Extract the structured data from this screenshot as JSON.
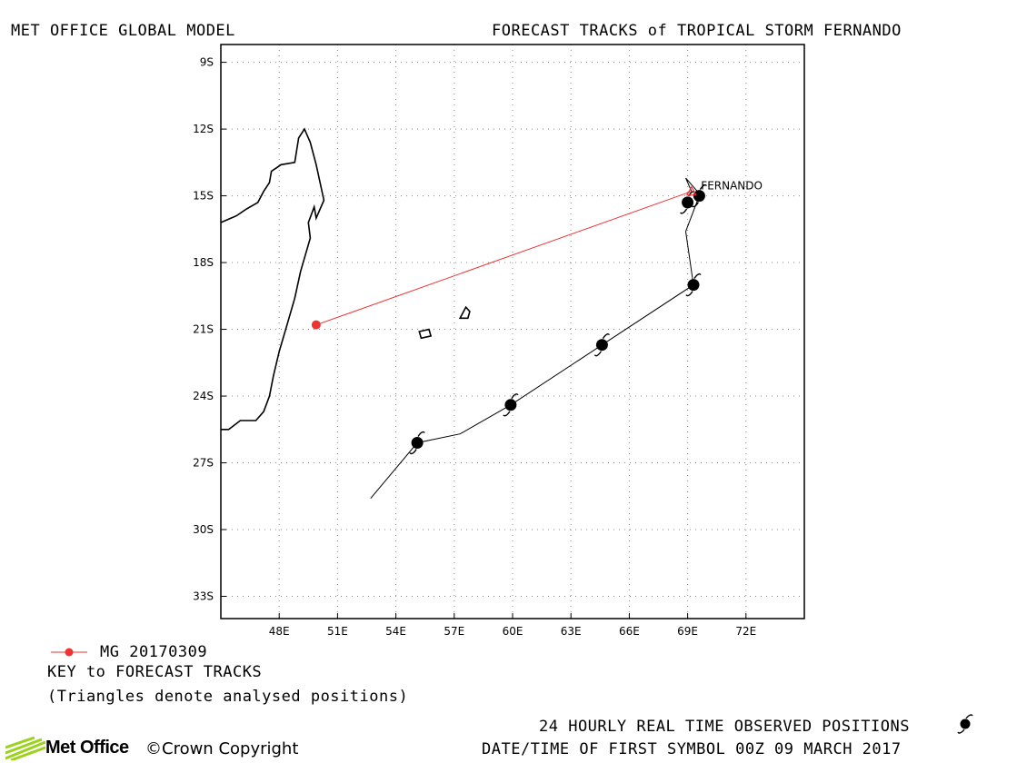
{
  "header": {
    "left_title": "MET OFFICE GLOBAL MODEL",
    "right_title": "FORECAST TRACKS of TROPICAL STORM FERNANDO"
  },
  "legend": {
    "series_label": "MG 20170309",
    "key_title": "KEY to FORECAST TRACKS",
    "key_note": "(Triangles denote analysed positions)"
  },
  "footer": {
    "observed_note": "24 HOURLY REAL TIME OBSERVED POSITIONS",
    "first_symbol_note": "DATE/TIME OF FIRST SYMBOL 00Z 09 MARCH 2017",
    "brand": "Met Office",
    "copyright": "©Crown Copyright"
  },
  "colors": {
    "forecast_track": "#ee3333",
    "observed_track": "#000000",
    "grid": "#888888",
    "coastline": "#000000"
  },
  "chart_data": {
    "type": "map",
    "xlim": [
      45,
      75
    ],
    "ylim": [
      -34,
      -8.2
    ],
    "x_ticks": [
      {
        "value": 48,
        "label": "48E"
      },
      {
        "value": 51,
        "label": "51E"
      },
      {
        "value": 54,
        "label": "54E"
      },
      {
        "value": 57,
        "label": "57E"
      },
      {
        "value": 60,
        "label": "60E"
      },
      {
        "value": 63,
        "label": "63E"
      },
      {
        "value": 66,
        "label": "66E"
      },
      {
        "value": 69,
        "label": "69E"
      },
      {
        "value": 72,
        "label": "72E"
      }
    ],
    "y_ticks": [
      {
        "value": -9,
        "label": "9S"
      },
      {
        "value": -12,
        "label": "12S"
      },
      {
        "value": -15,
        "label": "15S"
      },
      {
        "value": -18,
        "label": "18S"
      },
      {
        "value": -21,
        "label": "21S"
      },
      {
        "value": -24,
        "label": "24S"
      },
      {
        "value": -27,
        "label": "27S"
      },
      {
        "value": -30,
        "label": "30S"
      },
      {
        "value": -33,
        "label": "33S"
      }
    ],
    "grid": true,
    "storm_label": {
      "text": "FERNANDO",
      "lon": 69.5,
      "lat": -14.8
    },
    "forecast_tracks": [
      {
        "name": "MG 20170309",
        "points": [
          [
            69.2,
            -14.8
          ],
          [
            49.9,
            -20.8
          ]
        ],
        "start_marker": "triangle",
        "end_marker": "dot"
      }
    ],
    "observed_track": {
      "line": [
        [
          52.7,
          -28.6
        ],
        [
          55.1,
          -26.1
        ],
        [
          57.3,
          -25.7
        ],
        [
          59.9,
          -24.4
        ],
        [
          64.6,
          -21.7
        ],
        [
          69.3,
          -19.0
        ],
        [
          68.9,
          -16.6
        ],
        [
          69.6,
          -15.0
        ]
      ],
      "symbols": [
        [
          55.1,
          -26.1
        ],
        [
          59.9,
          -24.4
        ],
        [
          64.6,
          -21.7
        ],
        [
          69.3,
          -19.0
        ],
        [
          69.0,
          -15.3
        ],
        [
          69.6,
          -15.0
        ]
      ]
    },
    "analysed_hook": [
      [
        69.2,
        -14.8
      ],
      [
        68.9,
        -14.2
      ],
      [
        69.7,
        -15.0
      ]
    ],
    "coastline_madagascar": [
      [
        45.0,
        -16.2
      ],
      [
        45.8,
        -15.9
      ],
      [
        46.3,
        -15.6
      ],
      [
        46.9,
        -15.3
      ],
      [
        47.2,
        -14.8
      ],
      [
        47.5,
        -14.4
      ],
      [
        47.6,
        -13.9
      ],
      [
        48.1,
        -13.6
      ],
      [
        48.8,
        -13.5
      ],
      [
        49.0,
        -12.4
      ],
      [
        49.3,
        -12.0
      ],
      [
        49.6,
        -12.6
      ],
      [
        49.9,
        -13.6
      ],
      [
        50.3,
        -15.2
      ],
      [
        49.9,
        -16.0
      ],
      [
        49.8,
        -15.5
      ],
      [
        49.5,
        -16.2
      ],
      [
        49.6,
        -16.9
      ],
      [
        49.1,
        -18.4
      ],
      [
        48.8,
        -19.6
      ],
      [
        48.4,
        -20.8
      ],
      [
        48.0,
        -22.0
      ],
      [
        47.7,
        -23.1
      ],
      [
        47.5,
        -24.0
      ],
      [
        47.2,
        -24.7
      ],
      [
        46.8,
        -25.1
      ],
      [
        46.0,
        -25.1
      ],
      [
        45.4,
        -25.5
      ],
      [
        45.0,
        -25.5
      ]
    ],
    "islands": [
      {
        "name": "",
        "points": [
          [
            55.2,
            -21.1
          ],
          [
            55.7,
            -21.0
          ],
          [
            55.8,
            -21.3
          ],
          [
            55.3,
            -21.4
          ]
        ]
      },
      {
        "name": "",
        "points": [
          [
            57.3,
            -20.5
          ],
          [
            57.6,
            -20.0
          ],
          [
            57.8,
            -20.2
          ],
          [
            57.7,
            -20.5
          ]
        ]
      }
    ]
  }
}
